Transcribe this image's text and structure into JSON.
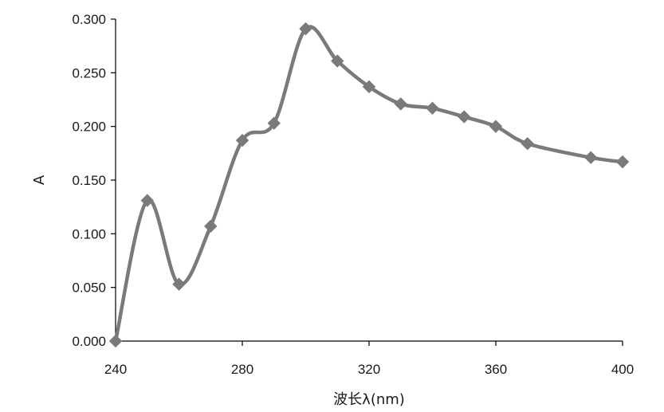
{
  "chart_data": {
    "type": "line",
    "title": "",
    "xlabel": "波长λ(nm)",
    "ylabel": "A",
    "xlim": [
      240,
      400
    ],
    "ylim": [
      0.0,
      0.3
    ],
    "xticks": [
      "240",
      "280",
      "320",
      "360",
      "400"
    ],
    "yticks": [
      "0.000",
      "0.050",
      "0.100",
      "0.150",
      "0.200",
      "0.250",
      "0.300"
    ],
    "grid": false,
    "legend": "none",
    "line_color": "#7a7a7a",
    "marker": "diamond",
    "series": [
      {
        "x": [
          240,
          250,
          260,
          270,
          280,
          290,
          300,
          310,
          320,
          330,
          340,
          350,
          360,
          370,
          390,
          400
        ],
        "y": [
          0.0,
          0.131,
          0.053,
          0.107,
          0.187,
          0.203,
          0.291,
          0.261,
          0.237,
          0.221,
          0.217,
          0.209,
          0.2,
          0.184,
          0.171,
          0.167
        ]
      }
    ]
  }
}
